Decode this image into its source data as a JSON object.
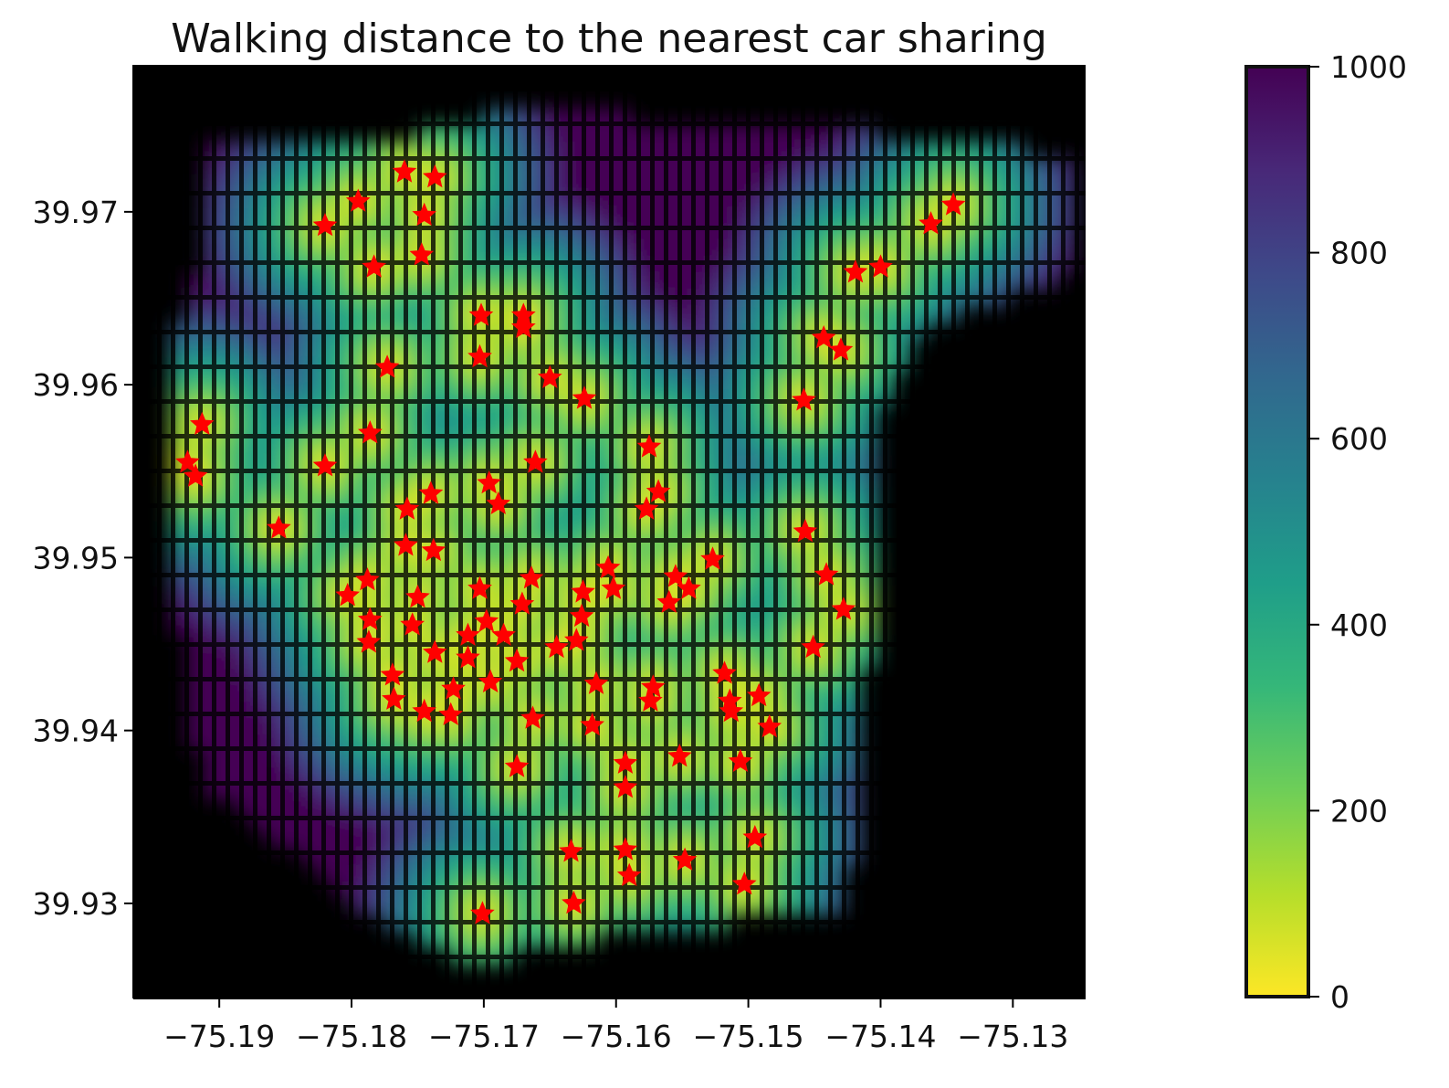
{
  "chart_data": {
    "type": "scatter",
    "title": "Walking distance to the nearest car sharing",
    "xlabel": "",
    "ylabel": "",
    "xlim": [
      -75.1965,
      -75.1245
    ],
    "ylim": [
      39.9245,
      39.9785
    ],
    "x_ticks": [
      -75.19,
      -75.18,
      -75.17,
      -75.16,
      -75.15,
      -75.14,
      -75.13
    ],
    "x_tick_labels": [
      "−75.19",
      "−75.18",
      "−75.17",
      "−75.16",
      "−75.15",
      "−75.14",
      "−75.13"
    ],
    "y_ticks": [
      39.93,
      39.94,
      39.95,
      39.96,
      39.97
    ],
    "y_tick_labels": [
      "39.93",
      "39.94",
      "39.95",
      "39.96",
      "39.97"
    ],
    "background": "#000000",
    "colorbar": {
      "colormap": "viridis_r",
      "range": [
        0,
        1000
      ],
      "ticks": [
        0,
        200,
        400,
        600,
        800,
        1000
      ],
      "tick_labels": [
        "0",
        "200",
        "400",
        "600",
        "800",
        "1000"
      ]
    },
    "colors": {
      "star": "#ff0000",
      "frame": "#000000",
      "viridis": [
        "#fde725",
        "#b5de2b",
        "#6ece58",
        "#35b779",
        "#1f9e89",
        "#26828e",
        "#31688e",
        "#3e4989",
        "#482878",
        "#440154"
      ]
    },
    "car_sharing_locations": {
      "marker": "star",
      "points": [
        [
          -75.1913,
          39.9577
        ],
        [
          -75.1924,
          39.9555
        ],
        [
          -75.1918,
          39.9547
        ],
        [
          -75.1855,
          39.9517
        ],
        [
          -75.182,
          39.9553
        ],
        [
          -75.182,
          39.9692
        ],
        [
          -75.1795,
          39.9706
        ],
        [
          -75.1783,
          39.9668
        ],
        [
          -75.176,
          39.9723
        ],
        [
          -75.1737,
          39.972
        ],
        [
          -75.1745,
          39.9698
        ],
        [
          -75.1747,
          39.9675
        ],
        [
          -75.1773,
          39.961
        ],
        [
          -75.1786,
          39.9572
        ],
        [
          -75.1702,
          39.964
        ],
        [
          -75.1703,
          39.9616
        ],
        [
          -75.167,
          39.964
        ],
        [
          -75.167,
          39.9633
        ],
        [
          -75.165,
          39.9604
        ],
        [
          -75.1624,
          39.9592
        ],
        [
          -75.1661,
          39.9555
        ],
        [
          -75.1575,
          39.9564
        ],
        [
          -75.1568,
          39.9538
        ],
        [
          -75.1577,
          39.9528
        ],
        [
          -75.1689,
          39.9531
        ],
        [
          -75.1696,
          39.9543
        ],
        [
          -75.174,
          39.9537
        ],
        [
          -75.1758,
          39.9528
        ],
        [
          -75.1759,
          39.9507
        ],
        [
          -75.1738,
          39.9504
        ],
        [
          -75.175,
          39.9477
        ],
        [
          -75.1788,
          39.9487
        ],
        [
          -75.1803,
          39.9478
        ],
        [
          -75.1786,
          39.9464
        ],
        [
          -75.1787,
          39.9451
        ],
        [
          -75.1754,
          39.9461
        ],
        [
          -75.1712,
          39.9455
        ],
        [
          -75.1737,
          39.9445
        ],
        [
          -75.1712,
          39.9442
        ],
        [
          -75.1703,
          39.9482
        ],
        [
          -75.1698,
          39.9463
        ],
        [
          -75.1685,
          39.9455
        ],
        [
          -75.1671,
          39.9473
        ],
        [
          -75.1664,
          39.9488
        ],
        [
          -75.1645,
          39.9448
        ],
        [
          -75.163,
          39.9452
        ],
        [
          -75.1625,
          39.948
        ],
        [
          -75.1626,
          39.9466
        ],
        [
          -75.1606,
          39.9494
        ],
        [
          -75.1602,
          39.9482
        ],
        [
          -75.1555,
          39.9489
        ],
        [
          -75.1545,
          39.9482
        ],
        [
          -75.156,
          39.9474
        ],
        [
          -75.1527,
          39.9499
        ],
        [
          -75.1769,
          39.9432
        ],
        [
          -75.1768,
          39.9418
        ],
        [
          -75.1745,
          39.9411
        ],
        [
          -75.1725,
          39.9409
        ],
        [
          -75.1723,
          39.9424
        ],
        [
          -75.1695,
          39.9428
        ],
        [
          -75.1675,
          39.944
        ],
        [
          -75.1663,
          39.9407
        ],
        [
          -75.1675,
          39.9379
        ],
        [
          -75.1615,
          39.9427
        ],
        [
          -75.1618,
          39.9403
        ],
        [
          -75.1593,
          39.9381
        ],
        [
          -75.1593,
          39.9367
        ],
        [
          -75.1572,
          39.9425
        ],
        [
          -75.1574,
          39.9417
        ],
        [
          -75.1518,
          39.9433
        ],
        [
          -75.1514,
          39.9417
        ],
        [
          -75.1513,
          39.9411
        ],
        [
          -75.1492,
          39.942
        ],
        [
          -75.1484,
          39.9402
        ],
        [
          -75.1506,
          39.9382
        ],
        [
          -75.1552,
          39.9385
        ],
        [
          -75.1548,
          39.9325
        ],
        [
          -75.1495,
          39.9338
        ],
        [
          -75.1503,
          39.9311
        ],
        [
          -75.1634,
          39.933
        ],
        [
          -75.1632,
          39.93
        ],
        [
          -75.1593,
          39.9331
        ],
        [
          -75.159,
          39.9316
        ],
        [
          -75.1701,
          39.9294
        ],
        [
          -75.1457,
          39.9515
        ],
        [
          -75.1441,
          39.949
        ],
        [
          -75.1428,
          39.947
        ],
        [
          -75.1451,
          39.9448
        ],
        [
          -75.1458,
          39.9591
        ],
        [
          -75.1443,
          39.9627
        ],
        [
          -75.143,
          39.962
        ],
        [
          -75.1419,
          39.9665
        ],
        [
          -75.14,
          39.9668
        ],
        [
          -75.1362,
          39.9693
        ],
        [
          -75.1345,
          39.9704
        ]
      ]
    }
  }
}
